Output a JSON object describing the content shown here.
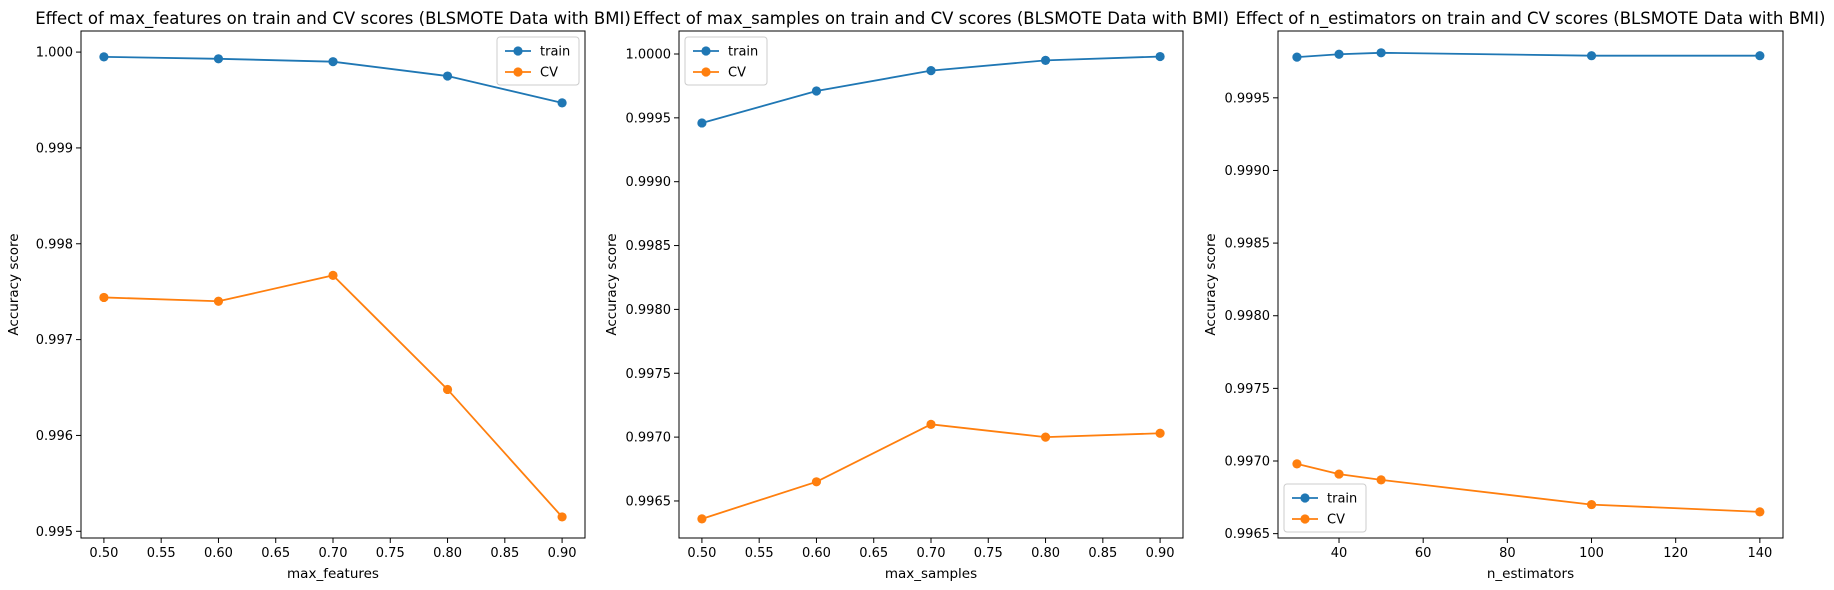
{
  "chart_data": [
    {
      "type": "line",
      "title": "Effect of max_features on train and CV scores (BLSMOTE Data with BMI)",
      "xlabel": "max_features",
      "ylabel": "Accuracy score",
      "xlim": [
        0.48,
        0.92
      ],
      "ylim": [
        0.99493,
        1.00022
      ],
      "xticks": [
        0.5,
        0.55,
        0.6,
        0.65,
        0.7,
        0.75,
        0.8,
        0.85,
        0.9
      ],
      "xtick_labels": [
        "0.50",
        "0.55",
        "0.60",
        "0.65",
        "0.70",
        "0.75",
        "0.80",
        "0.85",
        "0.90"
      ],
      "yticks": [
        0.995,
        0.996,
        0.997,
        0.998,
        0.999,
        1.0
      ],
      "ytick_labels": [
        "0.995",
        "0.996",
        "0.997",
        "0.998",
        "0.999",
        "1.000"
      ],
      "legend_position": "top-right",
      "x": [
        0.5,
        0.6,
        0.7,
        0.8,
        0.9
      ],
      "series": [
        {
          "name": "train",
          "color": "#1f77b4",
          "values": [
            0.99995,
            0.99993,
            0.9999,
            0.99975,
            0.99947
          ]
        },
        {
          "name": "CV",
          "color": "#ff7f0e",
          "values": [
            0.99744,
            0.9974,
            0.99767,
            0.99648,
            0.99515
          ]
        }
      ]
    },
    {
      "type": "line",
      "title": "Effect of max_samples on train and CV scores (BLSMOTE Data with BMI)",
      "xlabel": "max_samples",
      "ylabel": "Accuracy score",
      "xlim": [
        0.48,
        0.92
      ],
      "ylim": [
        0.99621,
        1.00018
      ],
      "xticks": [
        0.5,
        0.55,
        0.6,
        0.65,
        0.7,
        0.75,
        0.8,
        0.85,
        0.9
      ],
      "xtick_labels": [
        "0.50",
        "0.55",
        "0.60",
        "0.65",
        "0.70",
        "0.75",
        "0.80",
        "0.85",
        "0.90"
      ],
      "yticks": [
        0.9965,
        0.997,
        0.9975,
        0.998,
        0.9985,
        0.999,
        0.9995,
        1.0
      ],
      "ytick_labels": [
        "0.9965",
        "0.9970",
        "0.9975",
        "0.9980",
        "0.9985",
        "0.9990",
        "0.9995",
        "1.0000"
      ],
      "legend_position": "top-left",
      "x": [
        0.5,
        0.6,
        0.7,
        0.8,
        0.9
      ],
      "series": [
        {
          "name": "train",
          "color": "#1f77b4",
          "values": [
            0.99946,
            0.99971,
            0.99987,
            0.99995,
            0.99998
          ]
        },
        {
          "name": "CV",
          "color": "#ff7f0e",
          "values": [
            0.99636,
            0.99665,
            0.9971,
            0.997,
            0.99703
          ]
        }
      ]
    },
    {
      "type": "line",
      "title": "Effect of n_estimators on train and CV scores (BLSMOTE Data with BMI)",
      "xlabel": "n_estimators",
      "ylabel": "Accuracy score",
      "xlim": [
        25.5,
        145.5
      ],
      "ylim": [
        0.99647,
        0.99996
      ],
      "xticks": [
        40,
        60,
        80,
        100,
        120,
        140
      ],
      "xtick_labels": [
        "40",
        "60",
        "80",
        "100",
        "120",
        "140"
      ],
      "yticks": [
        0.9965,
        0.997,
        0.9975,
        0.998,
        0.9985,
        0.999,
        0.9995
      ],
      "ytick_labels": [
        "0.9965",
        "0.9970",
        "0.9975",
        "0.9980",
        "0.9985",
        "0.9990",
        "0.9995"
      ],
      "legend_position": "bottom-left",
      "x": [
        30,
        40,
        50,
        100,
        140
      ],
      "series": [
        {
          "name": "train",
          "color": "#1f77b4",
          "values": [
            0.99978,
            0.9998,
            0.99981,
            0.99979,
            0.99979
          ]
        },
        {
          "name": "CV",
          "color": "#ff7f0e",
          "values": [
            0.99698,
            0.99691,
            0.99687,
            0.9967,
            0.99665
          ]
        }
      ]
    }
  ]
}
